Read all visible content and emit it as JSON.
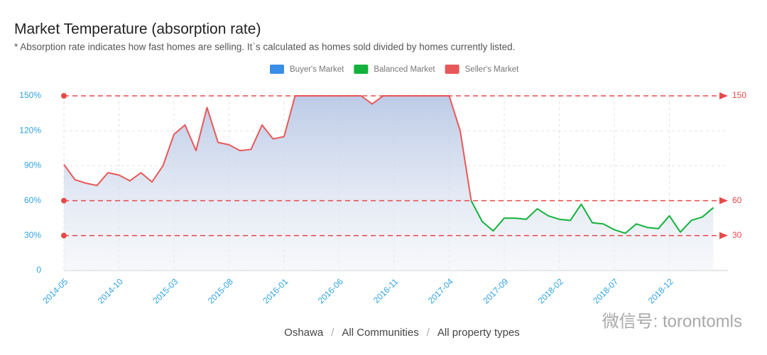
{
  "chart_data": {
    "type": "line",
    "title": "Market Temperature (absorption rate)",
    "subtitle": "* Absorption rate indicates how fast homes are selling. It`s calculated as homes sold divided by homes currently listed.",
    "legend": [
      {
        "name": "Buyer's Market",
        "color": "#3a8ee6"
      },
      {
        "name": "Balanced Market",
        "color": "#13b23c"
      },
      {
        "name": "Seller's Market",
        "color": "#e85858"
      }
    ],
    "x": [
      "2014-05",
      "2014-06",
      "2014-07",
      "2014-08",
      "2014-09",
      "2014-10",
      "2014-11",
      "2014-12",
      "2015-01",
      "2015-02",
      "2015-03",
      "2015-04",
      "2015-05",
      "2015-06",
      "2015-07",
      "2015-08",
      "2015-09",
      "2015-10",
      "2015-11",
      "2015-12",
      "2016-01",
      "2016-02",
      "2016-03",
      "2016-04",
      "2016-05",
      "2016-06",
      "2016-07",
      "2016-08",
      "2016-09",
      "2016-10",
      "2016-11",
      "2016-12",
      "2017-01",
      "2017-02",
      "2017-03",
      "2017-04",
      "2017-05",
      "2017-06",
      "2017-07",
      "2017-08",
      "2017-09",
      "2017-10",
      "2017-11",
      "2017-12",
      "2018-01",
      "2018-02",
      "2018-03",
      "2018-04",
      "2018-05",
      "2018-06",
      "2018-07",
      "2018-08",
      "2018-09",
      "2018-10",
      "2018-11",
      "2018-12",
      "2019-01",
      "2019-02",
      "2019-03",
      "2019-04"
    ],
    "values": [
      91,
      78,
      75,
      73,
      84,
      82,
      77,
      84,
      76,
      90,
      117,
      125,
      103,
      140,
      110,
      108,
      103,
      104,
      125,
      113,
      115,
      150,
      150,
      150,
      150,
      150,
      150,
      150,
      143,
      150,
      150,
      150,
      150,
      150,
      150,
      150,
      120,
      60,
      42,
      34,
      45,
      45,
      44,
      53,
      47,
      44,
      43,
      57,
      41,
      40,
      35,
      32,
      40,
      37,
      36,
      47,
      33,
      43,
      46,
      54
    ],
    "xticks": [
      "2014-05",
      "2014-10",
      "2015-03",
      "2015-08",
      "2016-01",
      "2016-06",
      "2016-11",
      "2017-04",
      "2017-09",
      "2018-02",
      "2018-07",
      "2018-12"
    ],
    "ylim": [
      0,
      150
    ],
    "yticks": [
      0,
      {
        "value": 30,
        "label": "30%"
      },
      {
        "value": 60,
        "label": "60%"
      },
      {
        "value": 90,
        "label": "90%"
      },
      {
        "value": 120,
        "label": "120%"
      },
      {
        "value": 150,
        "label": "150%"
      }
    ],
    "thresholds": [
      150,
      60,
      30
    ],
    "threshold_color": "#e84a4a",
    "grid": true,
    "breadcrumb": [
      "Oshawa",
      "All Communities",
      "All property types"
    ],
    "breadcrumb_separator": "/",
    "watermark": "微信号: torontomls"
  }
}
